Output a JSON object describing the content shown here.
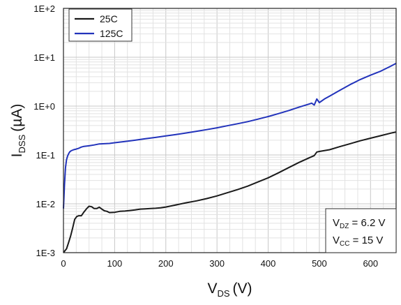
{
  "chart_data": {
    "type": "line",
    "title": "",
    "xlabel": {
      "main": "V",
      "sub": "DS",
      "unit": "(V)"
    },
    "ylabel": {
      "main": "I",
      "sub": "DSS",
      "unit": "(µA)"
    },
    "xlim": [
      0,
      650
    ],
    "ylim": [
      0.001,
      100
    ],
    "yscale": "log",
    "grid": true,
    "x_ticks": [
      0,
      100,
      200,
      300,
      400,
      500,
      600
    ],
    "x_tick_labels": [
      "0",
      "100",
      "200",
      "300",
      "400",
      "500",
      "600"
    ],
    "y_ticks": [
      0.001,
      0.01,
      0.1,
      1,
      10,
      100
    ],
    "y_tick_labels": [
      "1E-3",
      "1E-2",
      "1E-1",
      "1E+0",
      "1E+1",
      "1E+2"
    ],
    "legend_position": "top-left",
    "series": [
      {
        "name": "25C",
        "color": "#1a1a1a",
        "x": [
          0,
          3,
          6,
          10,
          14,
          18,
          22,
          26,
          30,
          35,
          40,
          45,
          50,
          55,
          60,
          65,
          70,
          75,
          80,
          85,
          90,
          100,
          110,
          120,
          130,
          140,
          150,
          160,
          170,
          180,
          190,
          200,
          220,
          240,
          260,
          280,
          300,
          320,
          340,
          360,
          380,
          400,
          420,
          440,
          460,
          480,
          490,
          495,
          500,
          520,
          540,
          560,
          580,
          600,
          620,
          640,
          650
        ],
        "y": [
          0.001,
          0.0011,
          0.0012,
          0.0016,
          0.0022,
          0.0032,
          0.0048,
          0.0055,
          0.0057,
          0.0057,
          0.0068,
          0.0079,
          0.0089,
          0.0087,
          0.008,
          0.008,
          0.0085,
          0.0078,
          0.0072,
          0.007,
          0.0066,
          0.0067,
          0.007,
          0.0071,
          0.0073,
          0.0075,
          0.0078,
          0.0079,
          0.008,
          0.0081,
          0.0083,
          0.0086,
          0.0095,
          0.0105,
          0.0115,
          0.0128,
          0.0145,
          0.0168,
          0.0195,
          0.023,
          0.028,
          0.034,
          0.043,
          0.055,
          0.07,
          0.087,
          0.097,
          0.115,
          0.118,
          0.128,
          0.148,
          0.17,
          0.195,
          0.22,
          0.248,
          0.28,
          0.295
        ]
      },
      {
        "name": "125C",
        "color": "#2233bb",
        "x": [
          0,
          2,
          4,
          6,
          8,
          10,
          12,
          15,
          20,
          25,
          30,
          35,
          40,
          50,
          60,
          70,
          80,
          90,
          100,
          120,
          140,
          160,
          180,
          200,
          220,
          240,
          260,
          280,
          300,
          320,
          340,
          360,
          380,
          400,
          420,
          440,
          460,
          480,
          485,
          490,
          495,
          500,
          510,
          520,
          540,
          560,
          580,
          600,
          620,
          640,
          650
        ],
        "y": [
          0.008,
          0.025,
          0.055,
          0.08,
          0.095,
          0.105,
          0.115,
          0.122,
          0.128,
          0.132,
          0.137,
          0.145,
          0.15,
          0.154,
          0.16,
          0.168,
          0.17,
          0.172,
          0.178,
          0.188,
          0.2,
          0.215,
          0.228,
          0.245,
          0.262,
          0.282,
          0.305,
          0.33,
          0.36,
          0.395,
          0.435,
          0.48,
          0.54,
          0.61,
          0.7,
          0.81,
          0.95,
          1.1,
          1.15,
          1.05,
          1.4,
          1.18,
          1.4,
          1.6,
          2.1,
          2.75,
          3.5,
          4.3,
          5.2,
          6.6,
          7.5
        ]
      }
    ],
    "annotation": {
      "lines": [
        {
          "main": "V",
          "sub": "DZ",
          "rest": " = 6.2 V"
        },
        {
          "main": "V",
          "sub": "CC",
          "rest": " = 15 V"
        }
      ],
      "position": "bottom-right"
    }
  }
}
